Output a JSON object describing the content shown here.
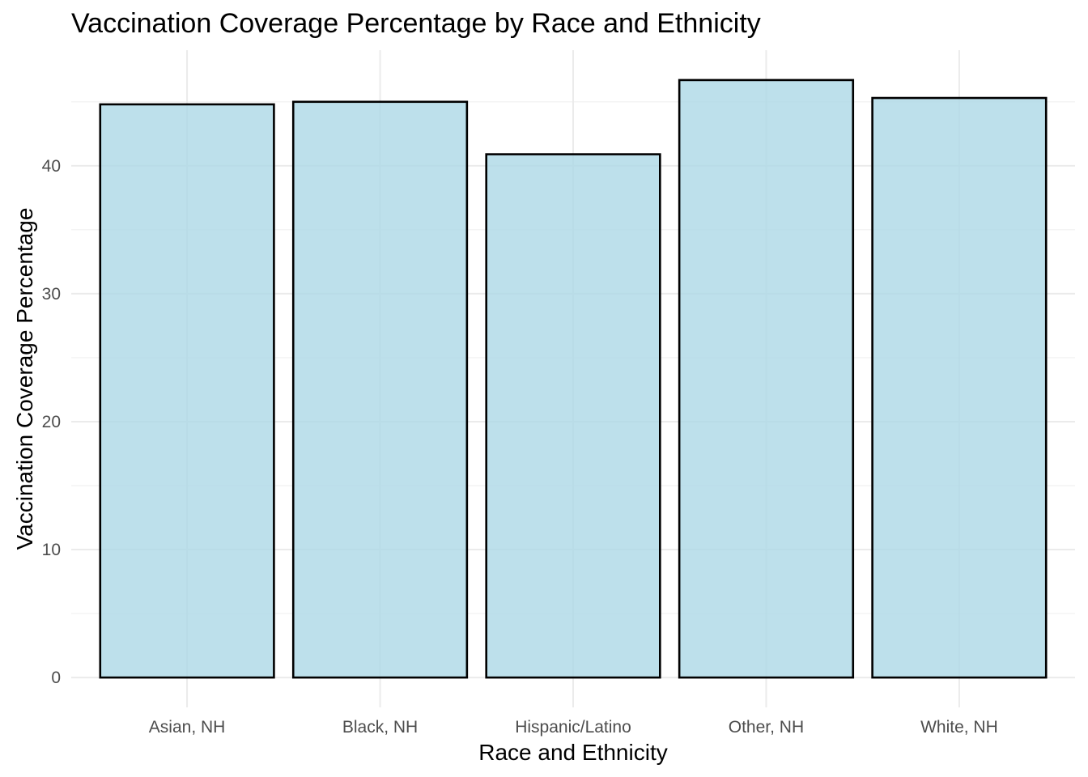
{
  "chart_data": {
    "type": "bar",
    "title": "Vaccination Coverage Percentage by Race and Ethnicity",
    "xlabel": "Race and Ethnicity",
    "ylabel": "Vaccination Coverage Percentage",
    "categories": [
      "Asian, NH",
      "Black, NH",
      "Hispanic/Latino",
      "Other, NH",
      "White, NH"
    ],
    "values": [
      44.8,
      45.0,
      40.9,
      46.7,
      45.3
    ],
    "ylim": [
      -2.335,
      49.035
    ],
    "yticks": [
      0,
      10,
      20,
      30,
      40
    ],
    "ytick_labels": [
      "0",
      "10",
      "20",
      "30",
      "40"
    ],
    "grid": true,
    "legend": "none",
    "colors": {
      "bar_fill": "#add8e6",
      "bar_stroke": "#000000",
      "grid_major": "#ebebeb",
      "grid_minor": "#f3f3f3",
      "tick_text": "#4d4d4d",
      "title_text": "#000000"
    }
  }
}
